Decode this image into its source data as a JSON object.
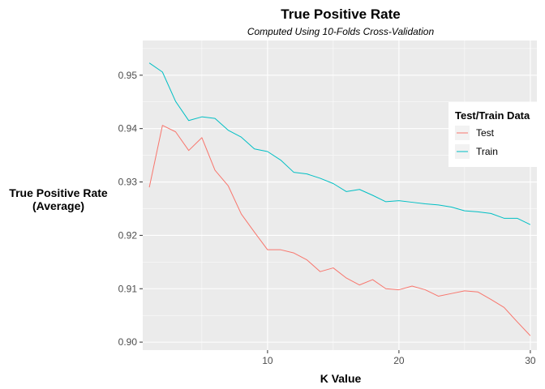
{
  "chart_data": {
    "type": "line",
    "title": "True Positive Rate",
    "subtitle": "Computed Using 10-Folds Cross-Validation",
    "xlabel": "K Value",
    "ylabel_lines": [
      "True Positive Rate",
      "(Average)"
    ],
    "xlim": [
      0.5,
      30.5
    ],
    "ylim": [
      0.8985,
      0.9565
    ],
    "x_ticks": [
      10,
      20,
      30
    ],
    "y_ticks": [
      0.9,
      0.91,
      0.92,
      0.93,
      0.94,
      0.95
    ],
    "y_tick_labels": [
      "0.90",
      "0.91",
      "0.92",
      "0.93",
      "0.94",
      "0.95"
    ],
    "grid": true,
    "legend": {
      "title": "Test/Train Data",
      "position": "right"
    },
    "x": [
      1,
      2,
      3,
      4,
      5,
      6,
      7,
      8,
      9,
      10,
      11,
      12,
      13,
      14,
      15,
      16,
      17,
      18,
      19,
      20,
      21,
      22,
      23,
      24,
      25,
      26,
      27,
      28,
      29,
      30
    ],
    "series": [
      {
        "name": "Test",
        "color": "#F8766D",
        "values": [
          0.929,
          0.9406,
          0.9394,
          0.9359,
          0.9383,
          0.9322,
          0.9293,
          0.924,
          0.9206,
          0.9173,
          0.9173,
          0.9167,
          0.9154,
          0.9132,
          0.9139,
          0.912,
          0.9107,
          0.9117,
          0.91,
          0.9098,
          0.9105,
          0.9098,
          0.9086,
          0.9091,
          0.9096,
          0.9094,
          0.908,
          0.9065,
          0.9038,
          0.9012
        ]
      },
      {
        "name": "Train",
        "color": "#00BFC4",
        "values": [
          0.9523,
          0.9506,
          0.9451,
          0.9415,
          0.9422,
          0.9419,
          0.9397,
          0.9384,
          0.9362,
          0.9357,
          0.9341,
          0.9318,
          0.9315,
          0.9307,
          0.9297,
          0.9282,
          0.9286,
          0.9275,
          0.9263,
          0.9265,
          0.9262,
          0.9259,
          0.9257,
          0.9253,
          0.9246,
          0.9244,
          0.9241,
          0.9232,
          0.9232,
          0.922
        ]
      }
    ]
  }
}
